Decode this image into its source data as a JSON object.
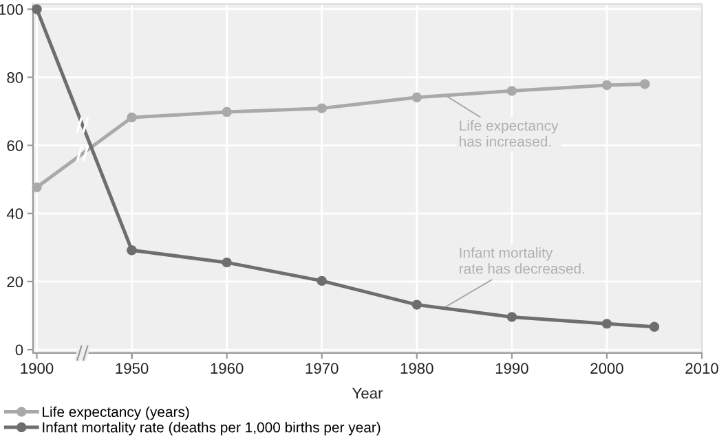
{
  "chart_data": [
    {
      "type": "line",
      "xlim": [
        1898,
        1950
      ],
      "xticks": [
        1900,
        1950
      ],
      "ylim": [
        -1,
        101.5
      ],
      "yticks": [
        0,
        20,
        40,
        60,
        80,
        100
      ],
      "series": [
        {
          "color": "#a9a9a9",
          "x": [
            1900,
            1950
          ],
          "values": [
            47.7,
            68.2
          ]
        },
        {
          "color": "#6e6e6e",
          "x": [
            1900,
            1950
          ],
          "values": [
            100,
            29.2
          ]
        }
      ],
      "marker": "circle",
      "line_style": "solid",
      "grid": true
    },
    {
      "type": "line",
      "xlabel": "Year",
      "xlim": [
        1950,
        2010
      ],
      "xticks": [
        {
          "value": 1950,
          "label": null
        },
        1960,
        1970,
        1980,
        1990,
        2000,
        2010
      ],
      "ylim": [
        -1,
        101.5
      ],
      "yticks": [
        {
          "value": 0,
          "label": null
        },
        {
          "value": 20,
          "label": null
        },
        {
          "value": 40,
          "label": null
        },
        {
          "value": 60,
          "label": null
        },
        {
          "value": 80,
          "label": null
        },
        {
          "value": 100,
          "label": null
        }
      ],
      "tick_labels": "x",
      "series": [
        {
          "name": "Life expectancy (years)",
          "color": "#a9a9a9",
          "x": [
            1950,
            1960,
            1970,
            1980,
            1990,
            2000,
            2004
          ],
          "values": [
            68.2,
            69.8,
            70.9,
            74.1,
            76,
            77.7,
            78
          ]
        },
        {
          "name": "Infant mortality rate (deaths per 1,000 births per year)",
          "color": "#6e6e6e",
          "x": [
            1950,
            1960,
            1970,
            1980,
            1990,
            2000,
            2005
          ],
          "values": [
            29.2,
            25.6,
            20.2,
            13.2,
            9.6,
            7.6,
            6.7
          ]
        }
      ],
      "annotations": [
        {
          "text": "Life expectancy\nhas increased.",
          "x": 1983,
          "y": 74.7
        },
        {
          "text": "Infant mortality\nrate has decreased.",
          "x": 1983,
          "y": 12.5
        }
      ],
      "marker": "circle",
      "line_style": "solid",
      "grid": true,
      "legend": "bottom left"
    }
  ]
}
